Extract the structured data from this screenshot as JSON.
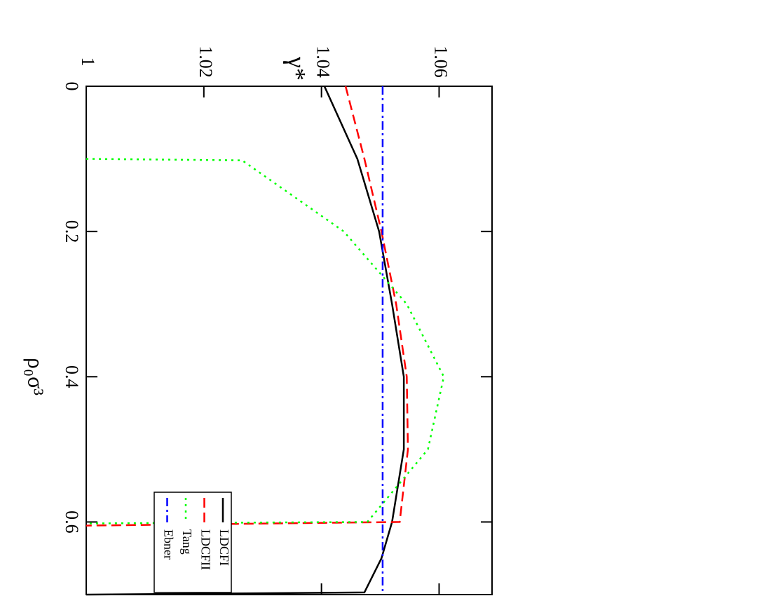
{
  "chart_data": {
    "type": "line",
    "y_label": "γ*",
    "x_label": "ρ₀σ³",
    "xlim": [
      0,
      0.7
    ],
    "xticks": [
      0,
      0.2,
      0.4,
      0.6
    ],
    "ylim": [
      1,
      1.069
    ],
    "yticks": [
      1,
      1.02,
      1.04,
      1.06
    ],
    "legend": "bottom-left",
    "series": [
      {
        "name": "LDCFI",
        "color": "#000000",
        "dash": "solid",
        "x": [
          0,
          0.1,
          0.2,
          0.3,
          0.4,
          0.5,
          0.6,
          0.65,
          0.697,
          0.7
        ],
        "values": [
          1.0405,
          1.0461,
          1.0498,
          1.052,
          1.054,
          1.054,
          1.052,
          1.0502,
          1.0473,
          1.0
        ]
      },
      {
        "name": "LDCFII",
        "color": "#ff0000",
        "dash": "dashed",
        "x": [
          0,
          0.1,
          0.2,
          0.3,
          0.4,
          0.5,
          0.6,
          0.605
        ],
        "values": [
          1.0441,
          1.0473,
          1.0502,
          1.0527,
          1.0545,
          1.0547,
          1.0533,
          1.0
        ]
      },
      {
        "name": "Tang",
        "color": "#00ff00",
        "dash": "dotted",
        "x": [
          0.1,
          0.102,
          0.2,
          0.3,
          0.4,
          0.5,
          0.6,
          0.602
        ],
        "values": [
          1.0,
          1.0265,
          1.0438,
          1.0545,
          1.0608,
          1.0581,
          1.0478,
          1.0
        ]
      },
      {
        "name": "Ebner",
        "color": "#0000ff",
        "dash": "dashdot",
        "x": [
          0,
          0.7
        ],
        "values": [
          1.0504,
          1.0504
        ]
      }
    ]
  }
}
